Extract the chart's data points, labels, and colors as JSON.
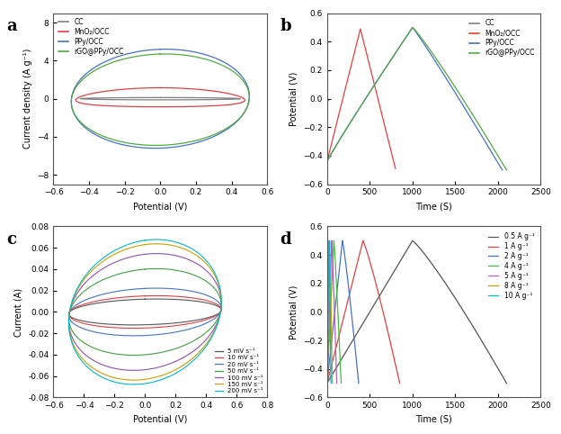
{
  "fig_width": 6.24,
  "fig_height": 4.82,
  "dpi": 100,
  "bg_color": "#ffffff",
  "panel_bg": "#ffffff",
  "a_xlim": [
    -0.6,
    0.6
  ],
  "a_ylim": [
    -9,
    9
  ],
  "a_xlabel": "Potential (V)",
  "a_ylabel": "Current density (A g⁻¹)",
  "a_xticks": [
    -0.6,
    -0.4,
    -0.2,
    0.0,
    0.2,
    0.4,
    0.6
  ],
  "a_yticks": [
    -8,
    -4,
    0,
    4,
    8
  ],
  "a_label": "a",
  "b_xlim": [
    0,
    2500
  ],
  "b_ylim": [
    -0.6,
    0.6
  ],
  "b_xlabel": "Time (S)",
  "b_ylabel": "Potential (V)",
  "b_xticks": [
    0,
    500,
    1000,
    1500,
    2000,
    2500
  ],
  "b_yticks": [
    -0.6,
    -0.4,
    -0.2,
    0.0,
    0.2,
    0.4,
    0.6
  ],
  "b_label": "b",
  "c_xlim": [
    -0.6,
    0.8
  ],
  "c_ylim": [
    -0.08,
    0.08
  ],
  "c_xlabel": "Potential (V)",
  "c_ylabel": "Current (A)",
  "c_xticks": [
    -0.6,
    -0.4,
    -0.2,
    0.0,
    0.2,
    0.4,
    0.6,
    0.8
  ],
  "c_yticks": [
    -0.08,
    -0.06,
    -0.04,
    -0.02,
    0.0,
    0.02,
    0.04,
    0.06,
    0.08
  ],
  "c_label": "c",
  "d_xlim": [
    0,
    2500
  ],
  "d_ylim": [
    -0.6,
    0.6
  ],
  "d_xlabel": "Time (S)",
  "d_ylabel": "Potential (V)",
  "d_xticks": [
    0,
    500,
    1000,
    1500,
    2000,
    2500
  ],
  "d_yticks": [
    -0.6,
    -0.4,
    -0.2,
    0.0,
    0.2,
    0.4,
    0.6
  ],
  "d_label": "d",
  "colors_ab": [
    "#808080",
    "#e04040",
    "#4472c4",
    "#50aa40"
  ],
  "labels_ab": [
    "CC",
    "MnO₂/OCC",
    "PPy/OCC",
    "rGO@PPy/OCC"
  ],
  "colors_c": [
    "#555555",
    "#e04040",
    "#4472c4",
    "#40a040",
    "#9050b0",
    "#c8a000",
    "#00b8c8"
  ],
  "labels_c": [
    "5 mV s⁻¹",
    "10 mV s⁻¹",
    "20 mV s⁻¹",
    "50 mV s⁻¹",
    "100 mV s⁻¹",
    "150 mV s⁻¹",
    "200 mV s⁻¹"
  ],
  "colors_d": [
    "#555555",
    "#e04040",
    "#4472c4",
    "#40c040",
    "#b060c0",
    "#c8a000",
    "#00b8c8"
  ],
  "labels_d": [
    "0.5 A g⁻¹",
    "1 A g⁻¹",
    "2 A g⁻¹",
    "4 A g⁻¹",
    "5 A g⁻¹",
    "8 A g⁻¹",
    "10 A g⁻¹"
  ]
}
